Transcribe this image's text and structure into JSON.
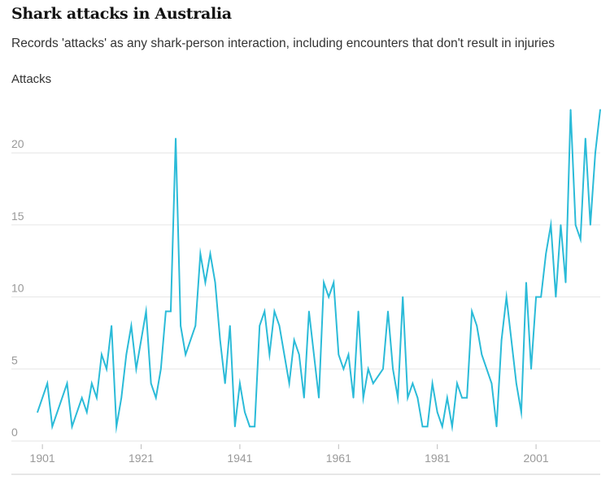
{
  "chart_data": {
    "type": "line",
    "title": "Shark attacks in Australia",
    "subtitle": "Records 'attacks' as any shark-person interaction, including encounters that don't result in injuries",
    "ylabel": "Attacks",
    "xlabel": "",
    "xlim": [
      1899,
      2014
    ],
    "ylim": [
      0,
      23
    ],
    "y_ticks": [
      0,
      5,
      10,
      15,
      20
    ],
    "x_ticks": [
      1901,
      1921,
      1941,
      1961,
      1981,
      2001
    ],
    "grid": true,
    "series": [
      {
        "name": "Attacks",
        "color": "#2bbbd8",
        "x": [
          1900,
          1901,
          1902,
          1903,
          1904,
          1905,
          1906,
          1907,
          1908,
          1909,
          1910,
          1911,
          1912,
          1913,
          1914,
          1915,
          1916,
          1917,
          1918,
          1919,
          1920,
          1921,
          1922,
          1923,
          1924,
          1925,
          1926,
          1927,
          1928,
          1929,
          1930,
          1931,
          1932,
          1933,
          1934,
          1935,
          1936,
          1937,
          1938,
          1939,
          1940,
          1941,
          1942,
          1943,
          1944,
          1945,
          1946,
          1947,
          1948,
          1949,
          1950,
          1951,
          1952,
          1953,
          1954,
          1955,
          1956,
          1957,
          1958,
          1959,
          1960,
          1961,
          1962,
          1963,
          1964,
          1965,
          1966,
          1967,
          1968,
          1969,
          1970,
          1971,
          1972,
          1973,
          1974,
          1975,
          1976,
          1977,
          1978,
          1979,
          1980,
          1981,
          1982,
          1983,
          1984,
          1985,
          1986,
          1987,
          1988,
          1989,
          1990,
          1991,
          1992,
          1993,
          1994,
          1995,
          1996,
          1997,
          1998,
          1999,
          2000,
          2001,
          2002,
          2003,
          2004,
          2005,
          2006,
          2007,
          2008,
          2009,
          2010,
          2011,
          2012,
          2013,
          2014
        ],
        "values": [
          2,
          3,
          4,
          1,
          2,
          3,
          4,
          1,
          2,
          3,
          2,
          4,
          3,
          6,
          5,
          8,
          1,
          3,
          6,
          8,
          5,
          7,
          9,
          4,
          3,
          5,
          9,
          9,
          21,
          8,
          6,
          7,
          8,
          13,
          11,
          13,
          11,
          7,
          4,
          8,
          1,
          4,
          2,
          1,
          1,
          8,
          9,
          6,
          9,
          8,
          6,
          4,
          7,
          6,
          3,
          9,
          6,
          3,
          11,
          10,
          11,
          6,
          5,
          6,
          3,
          9,
          3,
          5,
          4,
          4.5,
          5,
          9,
          5,
          3,
          10,
          3,
          4,
          3,
          1,
          1,
          4,
          2,
          1,
          3,
          1,
          4,
          3,
          3,
          9,
          8,
          6,
          5,
          4,
          1,
          7,
          10,
          7,
          4,
          2,
          11,
          5,
          10,
          10,
          13,
          15,
          10,
          15,
          11,
          23,
          15,
          14,
          21,
          15,
          20,
          23
        ]
      }
    ]
  }
}
